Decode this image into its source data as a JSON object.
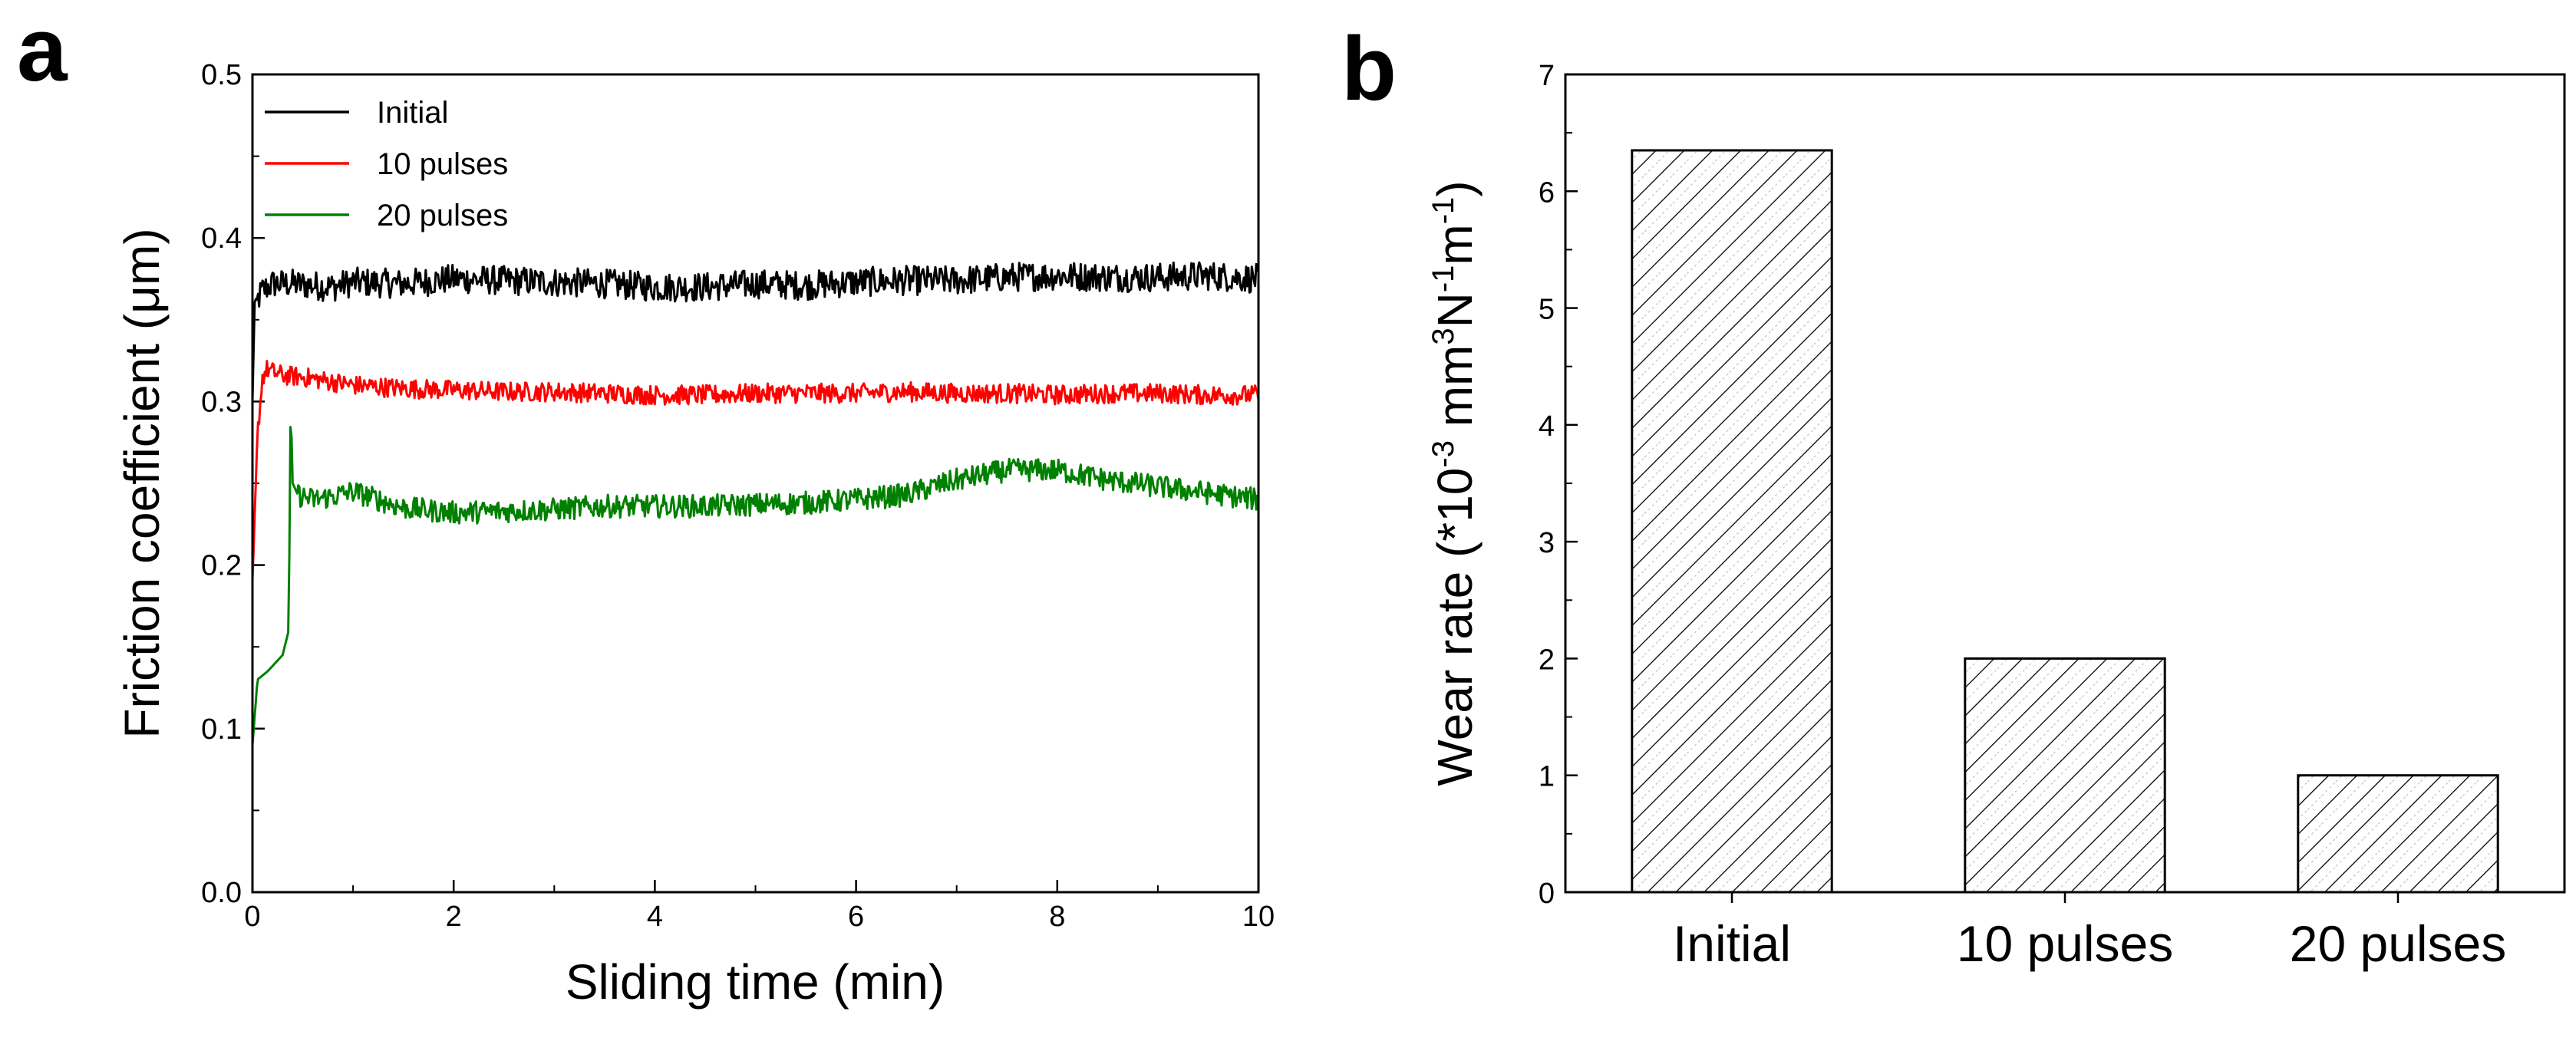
{
  "chart_data": [
    {
      "panel": "a",
      "type": "line",
      "title": "",
      "xlabel": "Sliding time (min)",
      "ylabel": "Friction coefficient (μm)",
      "xlim": [
        0,
        10
      ],
      "ylim": [
        0.0,
        0.5
      ],
      "xticks": [
        0,
        2,
        4,
        6,
        8,
        10
      ],
      "yticks": [
        "0.0",
        "0.1",
        "0.2",
        "0.3",
        "0.4",
        "0.5"
      ],
      "legend_position": "top-left",
      "series": [
        {
          "name": "Initial",
          "color": "#000000",
          "x": [
            0.0,
            0.02,
            0.05,
            0.1,
            0.15,
            0.2,
            0.4,
            0.6,
            0.8,
            1.0,
            1.5,
            2.0,
            2.5,
            3.0,
            3.5,
            4.0,
            4.5,
            5.0,
            5.5,
            6.0,
            6.5,
            7.0,
            7.5,
            8.0,
            8.5,
            9.0,
            9.5,
            10.0
          ],
          "y": [
            0.3,
            0.36,
            0.362,
            0.368,
            0.37,
            0.372,
            0.372,
            0.371,
            0.37,
            0.373,
            0.372,
            0.375,
            0.374,
            0.373,
            0.372,
            0.37,
            0.37,
            0.372,
            0.371,
            0.373,
            0.374,
            0.374,
            0.376,
            0.377,
            0.376,
            0.376,
            0.377,
            0.375
          ],
          "noise": 0.009
        },
        {
          "name": "10 pulses",
          "color": "#ff0000",
          "x": [
            0.0,
            0.05,
            0.1,
            0.15,
            0.2,
            0.3,
            0.5,
            0.8,
            1.0,
            1.5,
            2.0,
            2.5,
            3.0,
            3.5,
            4.0,
            4.5,
            5.0,
            5.5,
            6.0,
            6.5,
            7.0,
            7.5,
            8.0,
            8.5,
            9.0,
            9.5,
            10.0
          ],
          "y": [
            0.19,
            0.28,
            0.315,
            0.32,
            0.318,
            0.316,
            0.315,
            0.312,
            0.31,
            0.308,
            0.307,
            0.306,
            0.306,
            0.305,
            0.304,
            0.304,
            0.305,
            0.305,
            0.305,
            0.306,
            0.305,
            0.305,
            0.304,
            0.305,
            0.305,
            0.304,
            0.304
          ],
          "noise": 0.006
        },
        {
          "name": "20 pulses",
          "color": "#008000",
          "x": [
            0.0,
            0.05,
            0.15,
            0.3,
            0.36,
            0.38,
            0.4,
            0.45,
            0.6,
            0.8,
            1.0,
            1.5,
            2.0,
            2.5,
            3.0,
            3.5,
            4.0,
            4.5,
            5.0,
            5.5,
            6.0,
            6.5,
            7.0,
            7.5,
            8.0,
            8.5,
            9.0,
            9.5,
            10.0
          ],
          "y": [
            0.09,
            0.13,
            0.135,
            0.145,
            0.16,
            0.3,
            0.25,
            0.243,
            0.24,
            0.242,
            0.245,
            0.235,
            0.232,
            0.233,
            0.234,
            0.236,
            0.236,
            0.236,
            0.237,
            0.238,
            0.24,
            0.243,
            0.252,
            0.258,
            0.258,
            0.252,
            0.248,
            0.244,
            0.24
          ],
          "noise": 0.007
        }
      ]
    },
    {
      "panel": "b",
      "type": "bar",
      "title": "",
      "xlabel": "",
      "ylabel": "Wear rate (*10⁻³ mm³N⁻¹m⁻¹)",
      "categories": [
        "Initial",
        "10 pulses",
        "20 pulses"
      ],
      "values": [
        6.35,
        2.0,
        1.0
      ],
      "ylim": [
        0,
        7
      ],
      "yticks": [
        "0",
        "1",
        "2",
        "3",
        "4",
        "5",
        "6",
        "7"
      ],
      "bar_fill": "hatched"
    }
  ],
  "panel_labels": [
    "a",
    "b"
  ],
  "axis_titles": {
    "a_x": "Sliding time (min)",
    "a_y": "Friction coefficient (μm)",
    "b_y_main": "Wear rate (*10",
    "b_y_exp1": "-3",
    "b_y_mm": " mm",
    "b_y_exp2": "3",
    "b_y_N": "N",
    "b_y_exp3": "-1",
    "b_y_m": "m",
    "b_y_exp4": "-1",
    "b_y_close": ")"
  }
}
